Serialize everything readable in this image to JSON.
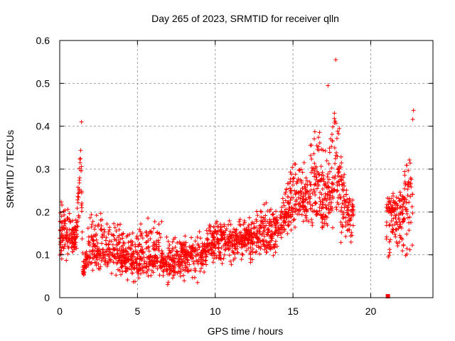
{
  "chart_data": {
    "type": "scatter",
    "title": "Day 265 of 2023, SRMTID for receiver qlln",
    "xlabel": "GPS time / hours",
    "ylabel": "SRMTID / TECUs",
    "xlim": [
      0,
      24
    ],
    "ylim": [
      0,
      0.6
    ],
    "xticks": [
      0,
      5,
      10,
      15,
      20
    ],
    "xtick_labels": [
      "0",
      "5",
      "10",
      "15",
      "20"
    ],
    "yticks": [
      0,
      0.1,
      0.2,
      0.3,
      0.4,
      0.5,
      0.6
    ],
    "ytick_labels": [
      "0",
      "0.1",
      "0.2",
      "0.3",
      "0.4",
      "0.5",
      "0.6"
    ],
    "grid": true,
    "legend": "none",
    "marker": "+",
    "color": "#ff0000",
    "series": [
      {
        "name": "SRMTID",
        "envelope": [
          {
            "t": 0.0,
            "lo": 0.07,
            "mid": 0.15,
            "hi": 0.24
          },
          {
            "t": 0.5,
            "lo": 0.08,
            "mid": 0.15,
            "hi": 0.24
          },
          {
            "t": 1.0,
            "lo": 0.08,
            "mid": 0.14,
            "hi": 0.2
          },
          {
            "t": 1.2,
            "lo": 0.1,
            "mid": 0.2,
            "hi": 0.3
          },
          {
            "t": 1.35,
            "lo": 0.2,
            "mid": 0.33,
            "hi": 0.41
          },
          {
            "t": 1.5,
            "lo": 0.035,
            "mid": 0.06,
            "hi": 0.1
          },
          {
            "t": 2.0,
            "lo": 0.04,
            "mid": 0.12,
            "hi": 0.23
          },
          {
            "t": 3.0,
            "lo": 0.05,
            "mid": 0.11,
            "hi": 0.23
          },
          {
            "t": 4.0,
            "lo": 0.04,
            "mid": 0.1,
            "hi": 0.2
          },
          {
            "t": 5.0,
            "lo": 0.02,
            "mid": 0.09,
            "hi": 0.2
          },
          {
            "t": 6.0,
            "lo": 0.04,
            "mid": 0.1,
            "hi": 0.22
          },
          {
            "t": 7.0,
            "lo": 0.02,
            "mid": 0.08,
            "hi": 0.15
          },
          {
            "t": 8.0,
            "lo": 0.03,
            "mid": 0.1,
            "hi": 0.15
          },
          {
            "t": 9.0,
            "lo": 0.03,
            "mid": 0.1,
            "hi": 0.16
          },
          {
            "t": 10.0,
            "lo": 0.06,
            "mid": 0.14,
            "hi": 0.2
          },
          {
            "t": 11.0,
            "lo": 0.06,
            "mid": 0.13,
            "hi": 0.19
          },
          {
            "t": 12.0,
            "lo": 0.08,
            "mid": 0.14,
            "hi": 0.2
          },
          {
            "t": 13.0,
            "lo": 0.05,
            "mid": 0.15,
            "hi": 0.24
          },
          {
            "t": 14.0,
            "lo": 0.1,
            "mid": 0.16,
            "hi": 0.22
          },
          {
            "t": 15.0,
            "lo": 0.15,
            "mid": 0.22,
            "hi": 0.36
          },
          {
            "t": 16.0,
            "lo": 0.14,
            "mid": 0.24,
            "hi": 0.34
          },
          {
            "t": 16.5,
            "lo": 0.11,
            "mid": 0.24,
            "hi": 0.49
          },
          {
            "t": 17.0,
            "lo": 0.1,
            "mid": 0.22,
            "hi": 0.38
          },
          {
            "t": 17.7,
            "lo": 0.12,
            "mid": 0.28,
            "hi": 0.55
          },
          {
            "t": 18.5,
            "lo": 0.1,
            "mid": 0.2,
            "hi": 0.26
          },
          {
            "t": 18.9,
            "lo": 0.12,
            "mid": 0.2,
            "hi": 0.24
          },
          {
            "t": 21.1,
            "lo": 0.05,
            "mid": 0.2,
            "hi": 0.25
          },
          {
            "t": 22.0,
            "lo": 0.08,
            "mid": 0.2,
            "hi": 0.28
          },
          {
            "t": 22.7,
            "lo": 0.04,
            "mid": 0.28,
            "hi": 0.44
          }
        ],
        "outliers": [
          {
            "x": 21.1,
            "y": 0.0
          },
          {
            "x": 1.4,
            "y": 0.41
          },
          {
            "x": 17.25,
            "y": 0.495
          },
          {
            "x": 17.75,
            "y": 0.555
          },
          {
            "x": 22.75,
            "y": 0.437
          }
        ],
        "gaps": [
          [
            18.9,
            21.0
          ],
          [
            22.9,
            24.0
          ]
        ]
      }
    ]
  }
}
